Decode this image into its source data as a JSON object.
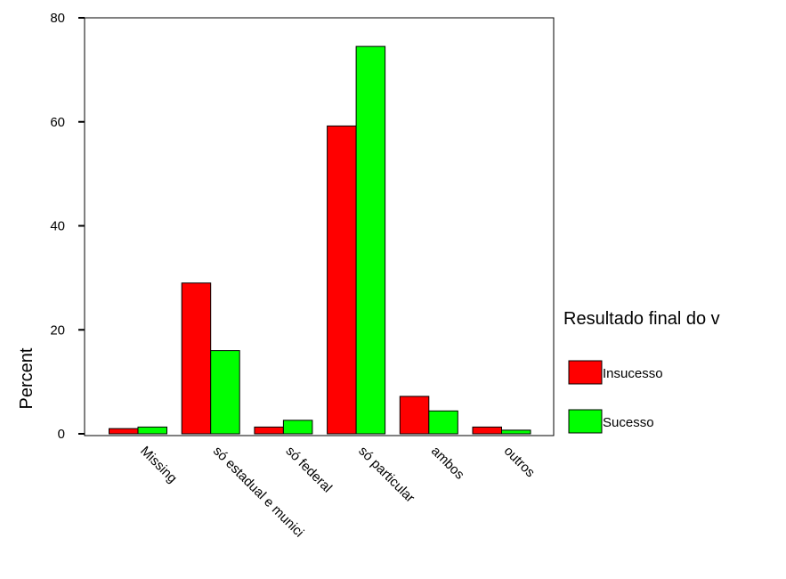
{
  "chart_data": {
    "type": "bar",
    "ylabel": "Percent",
    "xlabel": "",
    "ylim": [
      0,
      80
    ],
    "yticks": [
      0,
      20,
      40,
      60,
      80
    ],
    "categories": [
      "Missing",
      "só estadual e munici",
      "só federal",
      "só particular",
      "ambos",
      "outros"
    ],
    "series": [
      {
        "name": "Insucesso",
        "color": "#ff0000",
        "values": [
          1.0,
          29.0,
          1.3,
          59.2,
          7.2,
          1.3
        ]
      },
      {
        "name": "Sucesso",
        "color": "#00ff00",
        "values": [
          1.3,
          16.0,
          2.6,
          74.5,
          4.4,
          0.7
        ]
      }
    ],
    "legend": {
      "title": "Resultado final do v",
      "position": "right"
    },
    "grid": false
  }
}
